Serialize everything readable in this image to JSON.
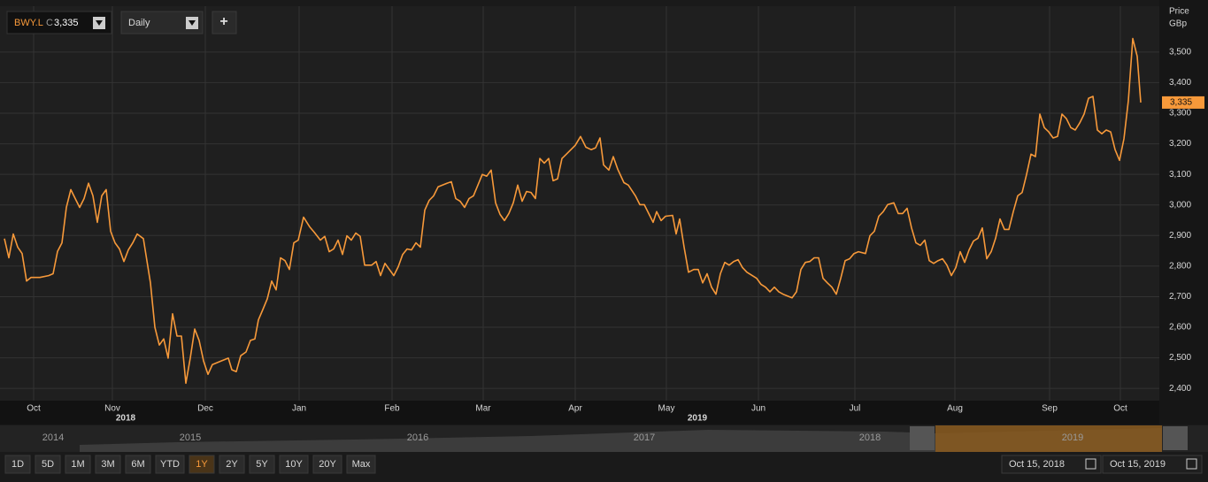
{
  "toolbar": {
    "close_prefix": "C",
    "interval": "Daily",
    "add": "+"
  },
  "chart_data": {
    "type": "line",
    "x": [
      0,
      1,
      2,
      3,
      4,
      5,
      6,
      8,
      10,
      11,
      12,
      13,
      14,
      15,
      16,
      17,
      18,
      19,
      20,
      21,
      22,
      23,
      24,
      25,
      26,
      27,
      28,
      29,
      30,
      31.4,
      33,
      34,
      35,
      36,
      37,
      38,
      39,
      40,
      41,
      42,
      43,
      44,
      45,
      46,
      47,
      49,
      50.6,
      51.4,
      52.4,
      53.4,
      54.6,
      55.6,
      56.6,
      57.4,
      58.4,
      59.4,
      60.4,
      61.4,
      62.4,
      63.4,
      64.4,
      65.4,
      66.4,
      67.6,
      69,
      70,
      71.4,
      72.4,
      73.4,
      74.4,
      75.4,
      76.4,
      77.4,
      78.4,
      79.4,
      80.4,
      81.4,
      83,
      84,
      85,
      86,
      87,
      88,
      89,
      90,
      91,
      92,
      93,
      94,
      95,
      96,
      97,
      98,
      100,
      101,
      102,
      103,
      104,
      105,
      106,
      107,
      108,
      109,
      110,
      111,
      112,
      113,
      114,
      115,
      116,
      117,
      118,
      119,
      120,
      121,
      122,
      123,
      124,
      125,
      126,
      127,
      129,
      130.2,
      131.4,
      132.6,
      133.6,
      134.6,
      135.4,
      136.6,
      137.6,
      138.6,
      140,
      141,
      142.6,
      143.6,
      144.6,
      145.6,
      146.6,
      147.4,
      148.4,
      149.4,
      151,
      151.8,
      152.6,
      153.6,
      154.6,
      155.8,
      156.8,
      157.8,
      158.8,
      159.8,
      160.8,
      161.8,
      162.8,
      163.8,
      164.8,
      165.8,
      166.8,
      167.8,
      169,
      170,
      171,
      172,
      173,
      174,
      175,
      176,
      178,
      179,
      180,
      181,
      182,
      183,
      184,
      185,
      186,
      187,
      188,
      189,
      190,
      191,
      192,
      193,
      194.6,
      195.6,
      196.6,
      197.6,
      198.6,
      199.6,
      201,
      202,
      203,
      204,
      205,
      206,
      207,
      208,
      209,
      210,
      211,
      212,
      213,
      214,
      215,
      216,
      217,
      218,
      219,
      220,
      221,
      222,
      223,
      224,
      225,
      226,
      227,
      228,
      229,
      230,
      231,
      232,
      233,
      234,
      235,
      236,
      237,
      238,
      239,
      240,
      241,
      242,
      243,
      244,
      245,
      246,
      247,
      248,
      249,
      250,
      251,
      252,
      253,
      254,
      255,
      256,
      256.8
    ],
    "series": [
      {
        "name": "BWY.L",
        "color": "#f7993a",
        "values": [
          2890,
          2827,
          2905,
          2862,
          2841,
          2751,
          2763,
          2763,
          2769,
          2775,
          2848,
          2876,
          2992,
          3050,
          3021,
          2992,
          3021,
          3071,
          3030,
          2943,
          3030,
          3050,
          2914,
          2876,
          2856,
          2815,
          2853,
          2876,
          2905,
          2890,
          2745,
          2600,
          2542,
          2562,
          2499,
          2644,
          2571,
          2571,
          2417,
          2499,
          2594,
          2557,
          2490,
          2446,
          2478,
          2490,
          2499,
          2461,
          2455,
          2507,
          2519,
          2557,
          2562,
          2624,
          2658,
          2693,
          2751,
          2722,
          2827,
          2818,
          2789,
          2876,
          2885,
          2960,
          2928,
          2911,
          2885,
          2897,
          2847,
          2856,
          2885,
          2838,
          2899,
          2885,
          2908,
          2897,
          2803,
          2803,
          2815,
          2769,
          2809,
          2789,
          2769,
          2798,
          2838,
          2856,
          2853,
          2876,
          2862,
          2983,
          3015,
          3030,
          3059,
          3071,
          3076,
          3021,
          3012,
          2992,
          3021,
          3030,
          3065,
          3100,
          3094,
          3114,
          3007,
          2969,
          2949,
          2972,
          3007,
          3065,
          3012,
          3044,
          3041,
          3021,
          3152,
          3137,
          3152,
          3079,
          3085,
          3152,
          3166,
          3195,
          3224,
          3189,
          3181,
          3187,
          3219,
          3131,
          3114,
          3158,
          3117,
          3073,
          3065,
          3030,
          3001,
          3001,
          2972,
          2943,
          2978,
          2949,
          2963,
          2966,
          2905,
          2954,
          2862,
          2780,
          2789,
          2789,
          2745,
          2775,
          2731,
          2708,
          2775,
          2812,
          2803,
          2815,
          2821,
          2795,
          2780,
          2769,
          2760,
          2740,
          2731,
          2716,
          2731,
          2716,
          2708,
          2696,
          2716,
          2789,
          2812,
          2815,
          2827,
          2827,
          2760,
          2745,
          2731,
          2708,
          2760,
          2818,
          2824,
          2841,
          2847,
          2841,
          2899,
          2914,
          2963,
          2978,
          3001,
          3007,
          2972,
          2972,
          2989,
          2925,
          2876,
          2868,
          2885,
          2818,
          2809,
          2818,
          2824,
          2803,
          2769,
          2795,
          2847,
          2812,
          2853,
          2882,
          2891,
          2925,
          2824,
          2847,
          2891,
          2954,
          2920,
          2920,
          2978,
          3030,
          3041,
          3100,
          3166,
          3158,
          3297,
          3253,
          3239,
          3219,
          3224,
          3297,
          3282,
          3253,
          3245,
          3268,
          3297,
          3349,
          3355,
          3245,
          3233,
          3245,
          3239,
          3181,
          3146,
          3216,
          3341,
          3544,
          3486,
          3335
        ]
      }
    ],
    "xlim": [
      0,
      261
    ],
    "xticks": [
      {
        "value": 6.6,
        "label": "Oct"
      },
      {
        "value": 24.4,
        "label": "Nov"
      },
      {
        "value": 45.4,
        "label": "Dec"
      },
      {
        "value": 66.6,
        "label": "Jan"
      },
      {
        "value": 87.6,
        "label": "Feb"
      },
      {
        "value": 108.2,
        "label": "Mar"
      },
      {
        "value": 129,
        "label": "Apr"
      },
      {
        "value": 149.6,
        "label": "May"
      },
      {
        "value": 170.4,
        "label": "Jun"
      },
      {
        "value": 192.2,
        "label": "Jul"
      },
      {
        "value": 214.8,
        "label": "Aug"
      },
      {
        "value": 236.2,
        "label": "Sep"
      },
      {
        "value": 252.2,
        "label": "Oct"
      }
    ],
    "year_ticks": [
      {
        "value": 27.4,
        "label": "2018"
      },
      {
        "value": 156.6,
        "label": "2019"
      }
    ],
    "ylim": [
      2360,
      3650
    ],
    "yticks": [
      {
        "value": 2400,
        "label": "2,400"
      },
      {
        "value": 2500,
        "label": "2,500"
      },
      {
        "value": 2600,
        "label": "2,600"
      },
      {
        "value": 2700,
        "label": "2,700"
      },
      {
        "value": 2800,
        "label": "2,800"
      },
      {
        "value": 2900,
        "label": "2,900"
      },
      {
        "value": 3000,
        "label": "3,000"
      },
      {
        "value": 3100,
        "label": "3,100"
      },
      {
        "value": 3200,
        "label": "3,200"
      },
      {
        "value": 3300,
        "label": "3,300"
      },
      {
        "value": 3400,
        "label": "3,400"
      },
      {
        "value": 3500,
        "label": "3,500"
      }
    ],
    "y_axis_title": "Price",
    "y_axis_unit": "GBp",
    "grid": true,
    "last_price": {
      "value": 3335,
      "label": "3,335"
    }
  },
  "navigator": {
    "years": [
      "2014",
      "2015",
      "2016",
      "2017",
      "2018",
      "2019"
    ]
  },
  "ranges": {
    "buttons": [
      "1D",
      "5D",
      "1M",
      "3M",
      "6M",
      "YTD",
      "1Y",
      "2Y",
      "5Y",
      "10Y",
      "20Y",
      "Max"
    ],
    "active_index": 6
  },
  "date_range": {
    "from": "Oct 15, 2018",
    "to": "Oct 15, 2019"
  }
}
